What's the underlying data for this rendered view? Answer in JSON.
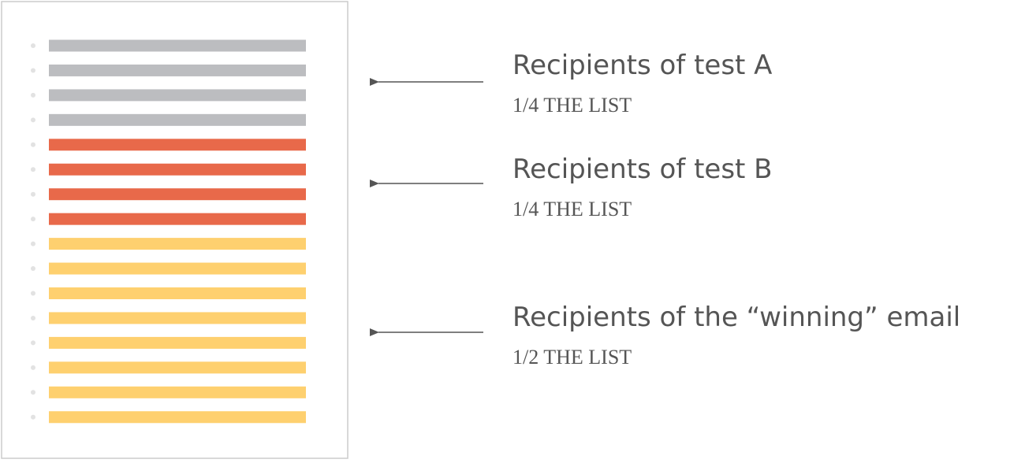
{
  "groups": [
    {
      "title": "Recipients of test A",
      "subtitle": "1/4 THE LIST"
    },
    {
      "title": "Recipients of test B",
      "subtitle": "1/4 THE LIST"
    },
    {
      "title": "Recipients of the “winning” email",
      "subtitle": "1/2 THE LIST"
    }
  ]
}
